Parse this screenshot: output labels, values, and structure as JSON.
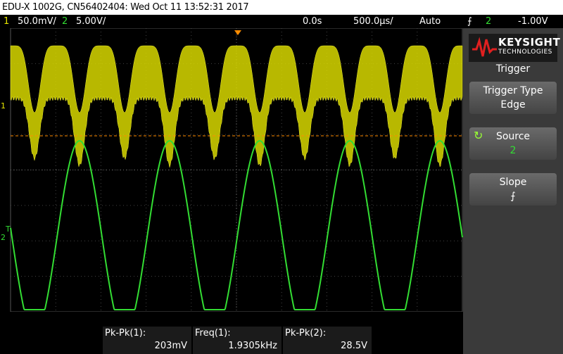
{
  "title_bar": "EDU-X 1002G, CN56402404: Wed Oct 11 13:52:31 2017",
  "status_bar": {
    "ch1_number": "1",
    "ch1_scale": "50.0mV/",
    "ch2_number": "2",
    "ch2_scale": "5.00V/",
    "time_delay": "0.0s",
    "time_scale": "500.0µs/",
    "trigger_mode": "Auto",
    "trigger_source": "2",
    "trigger_level": "-1.00V"
  },
  "markers": {
    "ch1": "1",
    "ch2": "2",
    "trigger": "T"
  },
  "panel": {
    "brand": "KEYSIGHT",
    "brand_sub": "TECHNOLOGIES",
    "menu_title": "Trigger",
    "buttons": [
      {
        "label": "Trigger Type",
        "value": "Edge"
      },
      {
        "label": "Source",
        "value": "2"
      },
      {
        "label": "Slope"
      }
    ]
  },
  "measurements": [
    {
      "label": "Pk-Pk(1):",
      "value": "203mV"
    },
    {
      "label": "Freq(1):",
      "value": "1.9305kHz"
    },
    {
      "label": "Pk-Pk(2):",
      "value": "28.5V"
    }
  ]
}
